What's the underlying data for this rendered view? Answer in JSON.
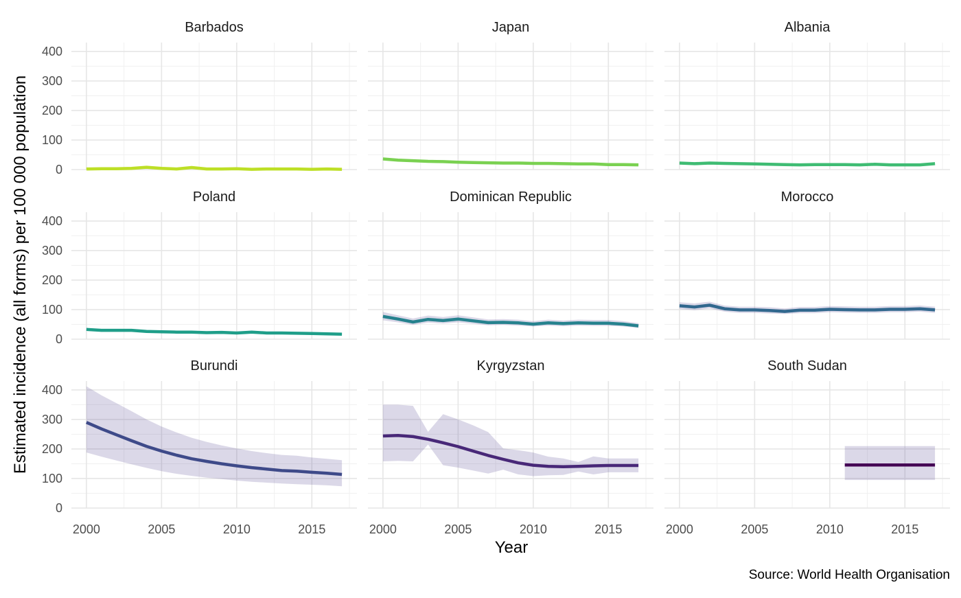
{
  "chart_data": {
    "type": "line",
    "facets": true,
    "xlabel": "Year",
    "ylabel": "Estimated incidence (all forms) per 100 000 population",
    "caption": "Source: World Health Organisation",
    "xlim": [
      1999,
      2018
    ],
    "ylim": [
      0,
      430
    ],
    "x_ticks": [
      2000,
      2005,
      2010,
      2015
    ],
    "y_ticks": [
      0,
      100,
      200,
      300,
      400
    ],
    "grid": true,
    "ribbon_color": "#5b4f96",
    "panels": [
      {
        "name": "Barbados",
        "color": "#bddf26",
        "x": [
          2000,
          2001,
          2002,
          2003,
          2004,
          2005,
          2006,
          2007,
          2008,
          2009,
          2010,
          2011,
          2012,
          2013,
          2014,
          2015,
          2016,
          2017
        ],
        "y": [
          2,
          3,
          3,
          4,
          8,
          4,
          2,
          7,
          2,
          2,
          3,
          1,
          2,
          2,
          2,
          1,
          2,
          1
        ],
        "lo": [
          1,
          2,
          2,
          3,
          6,
          3,
          1,
          5,
          1,
          1,
          2,
          1,
          1,
          1,
          1,
          1,
          1,
          1
        ],
        "hi": [
          3,
          4,
          4,
          5,
          10,
          5,
          3,
          9,
          3,
          3,
          4,
          2,
          3,
          3,
          3,
          2,
          3,
          2
        ]
      },
      {
        "name": "Japan",
        "color": "#7ad151",
        "x": [
          2000,
          2001,
          2002,
          2003,
          2004,
          2005,
          2006,
          2007,
          2008,
          2009,
          2010,
          2011,
          2012,
          2013,
          2014,
          2015,
          2016,
          2017
        ],
        "y": [
          36,
          32,
          30,
          28,
          27,
          25,
          24,
          23,
          22,
          22,
          21,
          21,
          20,
          19,
          19,
          17,
          17,
          16
        ],
        "lo": [
          33,
          29,
          27,
          25,
          24,
          22,
          21,
          20,
          19,
          19,
          18,
          18,
          17,
          16,
          16,
          15,
          15,
          14
        ],
        "hi": [
          39,
          35,
          33,
          31,
          30,
          28,
          27,
          26,
          25,
          25,
          24,
          24,
          23,
          22,
          22,
          19,
          19,
          18
        ]
      },
      {
        "name": "Albania",
        "color": "#3fbc73",
        "x": [
          2000,
          2001,
          2002,
          2003,
          2004,
          2005,
          2006,
          2007,
          2008,
          2009,
          2010,
          2011,
          2012,
          2013,
          2014,
          2015,
          2016,
          2017
        ],
        "y": [
          22,
          20,
          22,
          21,
          20,
          19,
          18,
          17,
          16,
          17,
          17,
          17,
          16,
          18,
          16,
          16,
          16,
          20
        ],
        "lo": [
          19,
          17,
          19,
          18,
          17,
          16,
          15,
          14,
          13,
          14,
          14,
          14,
          13,
          15,
          13,
          13,
          13,
          17
        ],
        "hi": [
          25,
          23,
          25,
          24,
          23,
          22,
          21,
          20,
          19,
          20,
          20,
          20,
          19,
          21,
          19,
          19,
          19,
          23
        ]
      },
      {
        "name": "Poland",
        "color": "#1f9e89",
        "x": [
          2000,
          2001,
          2002,
          2003,
          2004,
          2005,
          2006,
          2007,
          2008,
          2009,
          2010,
          2011,
          2012,
          2013,
          2014,
          2015,
          2016,
          2017
        ],
        "y": [
          33,
          30,
          30,
          30,
          26,
          25,
          24,
          24,
          22,
          23,
          21,
          24,
          21,
          21,
          20,
          19,
          18,
          17
        ],
        "lo": [
          30,
          27,
          27,
          27,
          23,
          22,
          21,
          21,
          19,
          20,
          18,
          21,
          18,
          18,
          17,
          16,
          15,
          14
        ],
        "hi": [
          36,
          33,
          33,
          33,
          29,
          28,
          27,
          27,
          25,
          26,
          24,
          27,
          24,
          24,
          23,
          22,
          21,
          20
        ]
      },
      {
        "name": "Dominican Republic",
        "color": "#26828e",
        "x": [
          2000,
          2001,
          2002,
          2003,
          2004,
          2005,
          2006,
          2007,
          2008,
          2009,
          2010,
          2011,
          2012,
          2013,
          2014,
          2015,
          2016,
          2017
        ],
        "y": [
          77,
          68,
          58,
          67,
          63,
          68,
          62,
          56,
          57,
          55,
          51,
          55,
          53,
          55,
          54,
          54,
          51,
          45
        ],
        "lo": [
          64,
          57,
          48,
          56,
          53,
          57,
          52,
          47,
          48,
          46,
          43,
          46,
          44,
          46,
          45,
          45,
          43,
          38
        ],
        "hi": [
          92,
          81,
          70,
          80,
          75,
          81,
          74,
          67,
          68,
          66,
          61,
          66,
          63,
          66,
          65,
          65,
          61,
          54
        ]
      },
      {
        "name": "Morocco",
        "color": "#31688e",
        "x": [
          2000,
          2001,
          2002,
          2003,
          2004,
          2005,
          2006,
          2007,
          2008,
          2009,
          2010,
          2011,
          2012,
          2013,
          2014,
          2015,
          2016,
          2017
        ],
        "y": [
          113,
          109,
          115,
          103,
          99,
          99,
          97,
          94,
          98,
          98,
          101,
          100,
          99,
          99,
          101,
          101,
          103,
          99
        ],
        "lo": [
          102,
          98,
          104,
          93,
          89,
          89,
          87,
          85,
          88,
          88,
          91,
          90,
          89,
          89,
          91,
          91,
          93,
          89
        ],
        "hi": [
          125,
          121,
          127,
          114,
          110,
          110,
          108,
          104,
          109,
          109,
          112,
          111,
          110,
          110,
          112,
          112,
          114,
          110
        ]
      },
      {
        "name": "Burundi",
        "color": "#3e4a89",
        "x": [
          2000,
          2001,
          2002,
          2003,
          2004,
          2005,
          2006,
          2007,
          2008,
          2009,
          2010,
          2011,
          2012,
          2013,
          2014,
          2015,
          2016,
          2017
        ],
        "y": [
          290,
          268,
          248,
          228,
          209,
          193,
          179,
          167,
          158,
          150,
          143,
          137,
          132,
          127,
          125,
          121,
          118,
          114
        ],
        "lo": [
          188,
          174,
          161,
          148,
          136,
          125,
          116,
          109,
          103,
          98,
          93,
          89,
          86,
          83,
          81,
          79,
          77,
          74
        ],
        "hi": [
          412,
          382,
          355,
          328,
          300,
          276,
          256,
          238,
          224,
          212,
          202,
          193,
          186,
          180,
          177,
          171,
          167,
          162
        ]
      },
      {
        "name": "Kyrgyzstan",
        "color": "#482878",
        "x": [
          2000,
          2001,
          2002,
          2003,
          2004,
          2005,
          2006,
          2007,
          2008,
          2009,
          2010,
          2011,
          2012,
          2013,
          2014,
          2015,
          2016,
          2017
        ],
        "y": [
          244,
          246,
          242,
          233,
          221,
          208,
          193,
          178,
          165,
          153,
          145,
          141,
          140,
          141,
          143,
          144,
          144,
          144
        ],
        "lo": [
          158,
          160,
          158,
          215,
          145,
          137,
          127,
          117,
          130,
          114,
          108,
          111,
          112,
          124,
          114,
          121,
          121,
          121
        ],
        "hi": [
          350,
          350,
          346,
          258,
          318,
          300,
          280,
          257,
          202,
          196,
          188,
          174,
          168,
          156,
          175,
          168,
          168,
          168
        ]
      },
      {
        "name": "South Sudan",
        "color": "#440154",
        "x": [
          2011,
          2012,
          2013,
          2014,
          2015,
          2016,
          2017
        ],
        "y": [
          146,
          146,
          146,
          146,
          146,
          146,
          146
        ],
        "lo": [
          95,
          95,
          95,
          95,
          95,
          95,
          95
        ],
        "hi": [
          210,
          210,
          210,
          210,
          210,
          210,
          210
        ]
      }
    ]
  }
}
